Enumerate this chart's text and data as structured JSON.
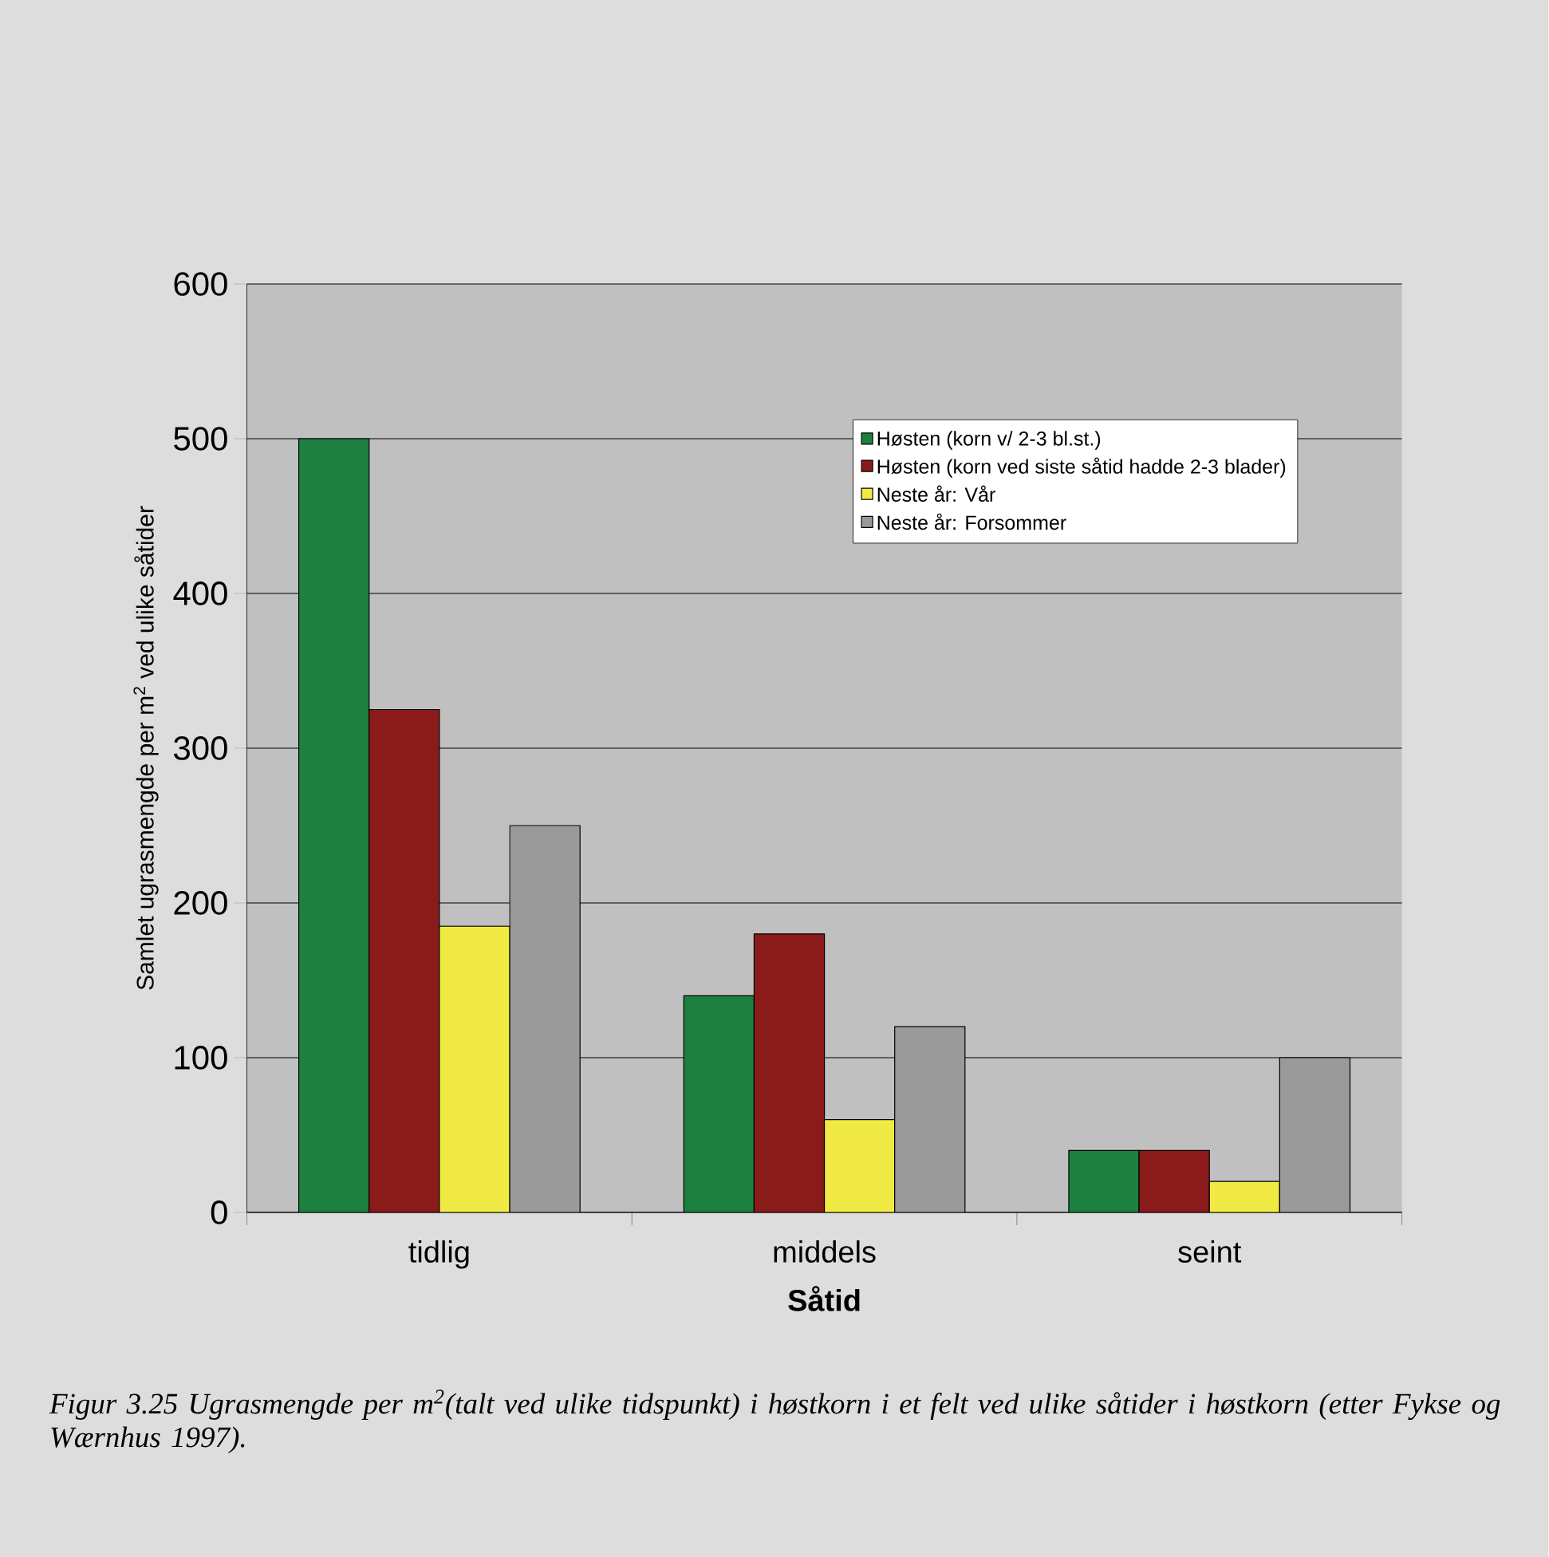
{
  "chart_data": {
    "type": "bar",
    "categories": [
      "tidlig",
      "middels",
      "seint"
    ],
    "xlabel": "Såtid",
    "ylabel": "Samlet ugrasmengde per m$^{2}$ ved ulike såtider",
    "ylim": [
      0,
      600
    ],
    "yticks": [
      0,
      100,
      200,
      300,
      400,
      500,
      600
    ],
    "grid": "y",
    "legend": "top right",
    "series": [
      {
        "name": "Høsten (korn v/ 2-3 bl.st.)",
        "color": "#1e8040",
        "values": [
          500,
          140,
          40
        ]
      },
      {
        "name": "Høsten (korn ved siste såtid hadde 2-3 blader)",
        "color": "#8b1a1a",
        "values": [
          325,
          180,
          40
        ]
      },
      {
        "name": "Neste år: Vår",
        "color": "#f2ea44",
        "values": [
          185,
          60,
          20
        ]
      },
      {
        "name": "Neste år: Forsommer",
        "color": "#9a9a9a",
        "values": [
          250,
          120,
          100
        ]
      }
    ],
    "annotations": [
      "Figur 3.25 Ugrasmengde per m$^{2}$(talt ved ulike tidspunkt) i høstkorn i et felt ved ulike såtider i høstkorn (etter Fykse og Wærnhus 1997)."
    ]
  }
}
